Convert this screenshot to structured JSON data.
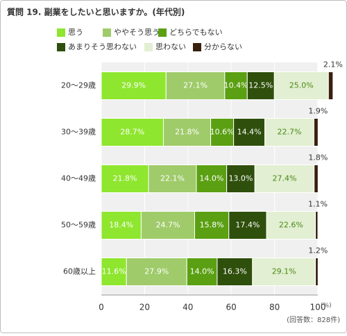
{
  "chart_data": {
    "type": "stacked-bar-horizontal",
    "title": "質問 19. 副業をしたいと思いますか。(年代別)",
    "categories": [
      "20～29歳",
      "30～39歳",
      "40～49歳",
      "50～59歳",
      "60歳以上"
    ],
    "series": [
      {
        "name": "思う",
        "color": "#8ee62e",
        "label_color": "#ffffff",
        "values": [
          29.9,
          28.7,
          21.8,
          18.4,
          11.6
        ],
        "value_labels": [
          "29.9%",
          "28.7%",
          "21.8%",
          "18.4%",
          "11.6%"
        ]
      },
      {
        "name": "ややそう思う",
        "color": "#9fcb6a",
        "label_color": "#ffffff",
        "values": [
          27.1,
          21.8,
          22.1,
          24.7,
          27.9
        ],
        "value_labels": [
          "27.1%",
          "21.8%",
          "22.1%",
          "24.7%",
          "27.9%"
        ]
      },
      {
        "name": "どちらでもない",
        "color": "#5aa012",
        "label_color": "#ffffff",
        "values": [
          10.4,
          10.6,
          14.0,
          15.8,
          14.0
        ],
        "value_labels": [
          "10.4%",
          "10.6%",
          "14.0%",
          "15.8%",
          "14.0%"
        ]
      },
      {
        "name": "あまりそう思わない",
        "color": "#2f4f0c",
        "label_color": "#ffffff",
        "values": [
          12.5,
          14.4,
          13.0,
          17.4,
          16.3
        ],
        "value_labels": [
          "12.5%",
          "14.4%",
          "13.0%",
          "17.4%",
          "16.3%"
        ]
      },
      {
        "name": "思わない",
        "color": "#e2efd2",
        "label_color": "#4a8a14",
        "values": [
          25.0,
          22.7,
          27.4,
          22.6,
          29.1
        ],
        "value_labels": [
          "25.0%",
          "22.7%",
          "27.4%",
          "22.6%",
          "29.1%"
        ]
      },
      {
        "name": "分からない",
        "color": "#3a1f0e",
        "label_color": "#333333",
        "label_position": "above",
        "values": [
          2.1,
          1.9,
          1.8,
          1.1,
          1.2
        ],
        "value_labels": [
          "2.1%",
          "1.9%",
          "1.8%",
          "1.1%",
          "1.2%"
        ]
      }
    ],
    "xlim": [
      0,
      100
    ],
    "xticks": [
      0,
      20,
      40,
      60,
      80,
      100
    ],
    "x_unit": "(%)",
    "note": "(回答数：828件)",
    "grid": true
  }
}
